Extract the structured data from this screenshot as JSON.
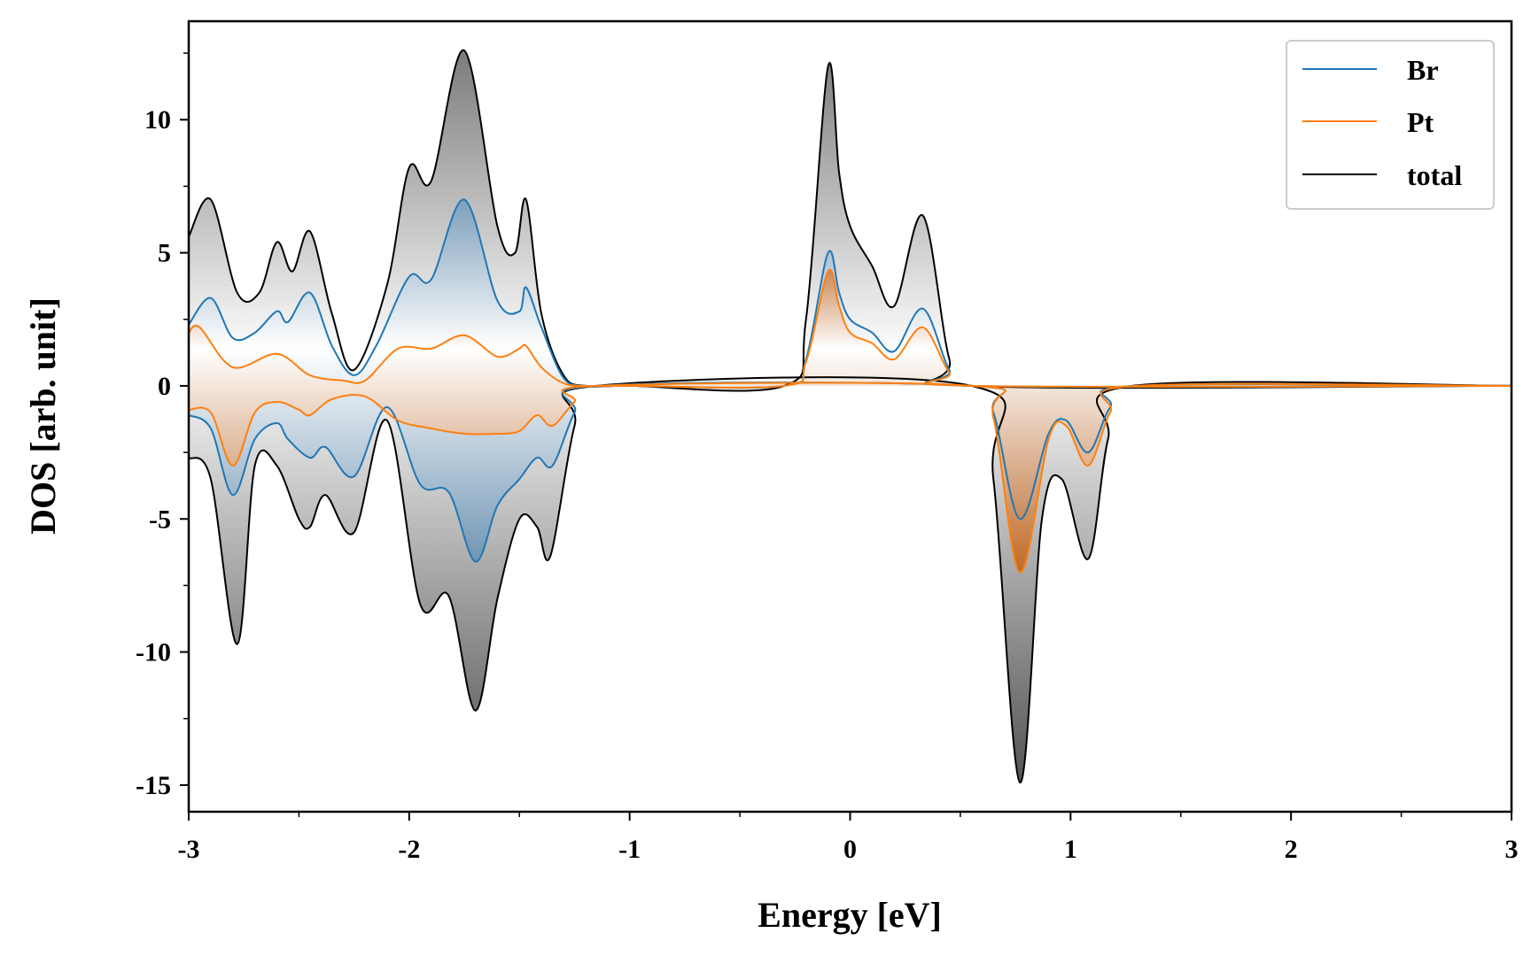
{
  "chart_data": {
    "type": "line",
    "title": "",
    "xlabel": "Energy [eV]",
    "ylabel": "DOS [arb. unit]",
    "xlim": [
      -3,
      3
    ],
    "ylim": [
      -16,
      13.7
    ],
    "x_ticks": [
      -3,
      -2,
      -1,
      0,
      1,
      2,
      3
    ],
    "x_tick_labels": [
      "-3",
      "-2",
      "-1",
      "0",
      "1",
      "2",
      "3"
    ],
    "y_ticks": [
      10,
      5,
      0,
      -5,
      -10,
      -15
    ],
    "y_tick_labels": [
      "10",
      "5",
      "0",
      "-5",
      "-10",
      "-15"
    ],
    "grid": false,
    "legend_position": "top-right",
    "series": [
      {
        "name": "Br",
        "color": "#1f77b4",
        "spin_up": {
          "x": [
            -3.0,
            -2.9,
            -2.8,
            -2.7,
            -2.6,
            -2.55,
            -2.45,
            -2.35,
            -2.25,
            -2.15,
            -2.0,
            -1.9,
            -1.75,
            -1.6,
            -1.5,
            -1.47,
            -1.4,
            -1.3,
            -1.2,
            -1.0,
            -0.3,
            -0.2,
            -0.1,
            -0.05,
            0.0,
            0.1,
            0.2,
            0.33,
            0.45,
            0.55,
            3.0
          ],
          "y": [
            2.3,
            3.3,
            1.8,
            2.0,
            2.8,
            2.4,
            3.5,
            1.5,
            0.4,
            1.5,
            4.1,
            4.0,
            7.0,
            3.2,
            2.8,
            3.7,
            2.2,
            0.3,
            0.0,
            0.0,
            0.0,
            1.0,
            5.0,
            3.5,
            2.5,
            2.0,
            1.3,
            2.9,
            0.6,
            0.0,
            0.0
          ]
        },
        "spin_down": {
          "x": [
            -3.0,
            -2.9,
            -2.8,
            -2.7,
            -2.6,
            -2.55,
            -2.45,
            -2.38,
            -2.25,
            -2.1,
            -1.95,
            -1.82,
            -1.7,
            -1.6,
            -1.5,
            -1.42,
            -1.35,
            -1.25,
            -1.15,
            0.55,
            0.65,
            0.77,
            0.9,
            0.98,
            1.08,
            1.18,
            1.3,
            3.0
          ],
          "y": [
            -1.1,
            -1.6,
            -4.1,
            -2.0,
            -1.4,
            -2.0,
            -2.7,
            -2.3,
            -3.4,
            -0.8,
            -3.7,
            -4.0,
            -6.6,
            -4.5,
            -3.5,
            -2.7,
            -3.0,
            -1.0,
            0.0,
            0.0,
            -1.0,
            -5.0,
            -1.8,
            -1.3,
            -2.5,
            -0.8,
            0.0,
            0.0
          ]
        }
      },
      {
        "name": "Pt",
        "color": "#ff7f0e",
        "spin_up": {
          "x": [
            -3.0,
            -2.95,
            -2.8,
            -2.6,
            -2.45,
            -2.3,
            -2.2,
            -2.05,
            -1.9,
            -1.75,
            -1.6,
            -1.5,
            -1.47,
            -1.4,
            -1.3,
            -1.2,
            -1.0,
            -0.3,
            -0.2,
            -0.1,
            -0.05,
            0.0,
            0.1,
            0.2,
            0.33,
            0.45,
            0.55,
            3.0
          ],
          "y": [
            2.0,
            2.2,
            0.7,
            1.2,
            0.4,
            0.2,
            0.2,
            1.4,
            1.4,
            1.9,
            1.1,
            1.4,
            1.5,
            0.7,
            0.1,
            0.0,
            0.0,
            0.0,
            0.9,
            4.3,
            3.0,
            2.0,
            1.6,
            1.0,
            2.2,
            0.5,
            0.0,
            0.0
          ]
        },
        "spin_down": {
          "x": [
            -3.0,
            -2.9,
            -2.8,
            -2.7,
            -2.6,
            -2.5,
            -2.45,
            -2.35,
            -2.2,
            -2.05,
            -1.9,
            -1.75,
            -1.6,
            -1.5,
            -1.42,
            -1.35,
            -1.25,
            -1.15,
            0.55,
            0.65,
            0.77,
            0.9,
            0.98,
            1.08,
            1.18,
            1.3,
            3.0
          ],
          "y": [
            -0.9,
            -1.0,
            -3.0,
            -1.0,
            -0.6,
            -0.9,
            -1.1,
            -0.5,
            -0.4,
            -1.3,
            -1.6,
            -1.8,
            -1.8,
            -1.7,
            -1.1,
            -1.5,
            -0.6,
            0.0,
            0.0,
            -1.2,
            -7.0,
            -2.0,
            -1.5,
            -3.0,
            -1.0,
            0.0,
            0.0
          ]
        }
      },
      {
        "name": "total",
        "color": "#000000",
        "spin_up": {
          "x": [
            -3.0,
            -2.9,
            -2.78,
            -2.68,
            -2.6,
            -2.53,
            -2.45,
            -2.35,
            -2.25,
            -2.1,
            -2.0,
            -1.9,
            -1.75,
            -1.6,
            -1.52,
            -1.47,
            -1.4,
            -1.3,
            -1.2,
            -1.0,
            -0.3,
            -0.2,
            -0.1,
            -0.05,
            0.0,
            0.1,
            0.2,
            0.33,
            0.45,
            0.55,
            3.0
          ],
          "y": [
            5.6,
            7.0,
            3.5,
            3.5,
            5.4,
            4.3,
            5.8,
            2.7,
            0.6,
            3.8,
            8.2,
            7.7,
            12.6,
            6.0,
            5.0,
            7.0,
            2.7,
            0.4,
            0.0,
            0.0,
            0.0,
            2.5,
            12.0,
            8.0,
            6.0,
            4.5,
            3.0,
            6.4,
            1.0,
            0.0,
            0.0
          ]
        },
        "spin_down": {
          "x": [
            -3.0,
            -2.9,
            -2.78,
            -2.7,
            -2.6,
            -2.5,
            -2.45,
            -2.38,
            -2.25,
            -2.1,
            -1.95,
            -1.82,
            -1.7,
            -1.6,
            -1.5,
            -1.42,
            -1.36,
            -1.25,
            -1.15,
            0.55,
            0.65,
            0.77,
            0.87,
            0.96,
            1.08,
            1.17,
            1.28,
            3.0
          ],
          "y": [
            -2.7,
            -3.5,
            -9.7,
            -3.0,
            -3.0,
            -5.0,
            -5.3,
            -4.1,
            -5.5,
            -1.3,
            -8.2,
            -7.9,
            -12.2,
            -8.0,
            -5.0,
            -5.3,
            -6.4,
            -1.5,
            0.0,
            0.0,
            -3.5,
            -14.9,
            -5.0,
            -3.5,
            -6.5,
            -2.0,
            0.0,
            0.0
          ]
        }
      }
    ]
  }
}
